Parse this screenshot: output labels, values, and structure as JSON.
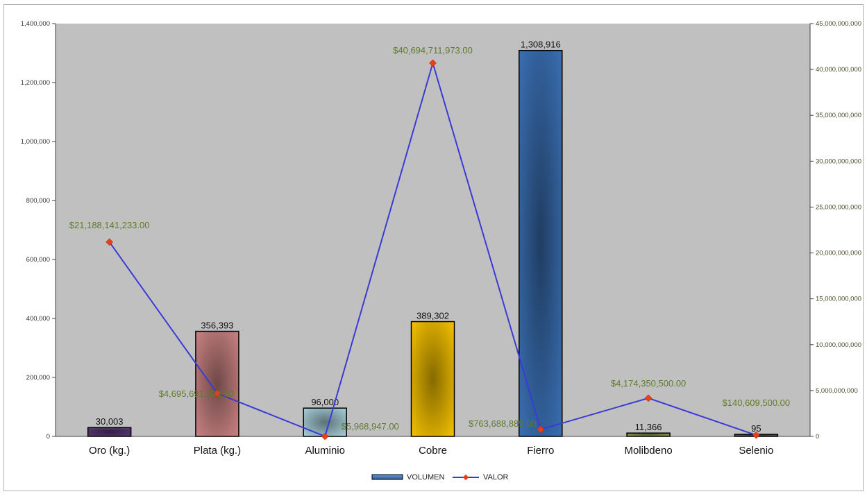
{
  "chart_data": {
    "type": "bar",
    "categories": [
      "Oro (kg.)",
      "Plata (kg.)",
      "Aluminio",
      "Cobre",
      "Fierro",
      "Molibdeno",
      "Selenio"
    ],
    "series": [
      {
        "name": "VOLUMEN",
        "type": "bar",
        "axis": "left",
        "values": [
          30003,
          356393,
          96000,
          389302,
          1308916,
          11366,
          95
        ],
        "labels": [
          "30,003",
          "356,393",
          "96,000",
          "389,302",
          "1,308,916",
          "11,366",
          "95"
        ],
        "colors": [
          "#5a3a78",
          "#c98282",
          "#a8cfd9",
          "#f4c100",
          "#3a6fb3",
          "#8da05a",
          "#606060"
        ]
      },
      {
        "name": "VALOR",
        "type": "line",
        "axis": "right",
        "values": [
          21188141233,
          4695691990,
          5968947,
          40694711973,
          763688885,
          4174350500,
          140609500
        ],
        "labels": [
          "$21,188,141,233.00",
          "$4,695,691,990.00",
          "$5,968,947.00",
          "$40,694,711,973.00",
          "$763,688,885.00",
          "$4,174,350,500.00",
          "$140,609,500.00"
        ],
        "color": "#3a3ad6",
        "marker_color": "#e8401a"
      }
    ],
    "y_left": {
      "ylim": [
        0,
        1400000
      ],
      "ticks": [
        0,
        200000,
        400000,
        600000,
        800000,
        1000000,
        1200000,
        1400000
      ],
      "tick_labels": [
        "0",
        "200,000",
        "400,000",
        "600,000",
        "800,000",
        "1,000,000",
        "1,200,000",
        "1,400,000"
      ]
    },
    "y_right": {
      "ylim": [
        0,
        45000000000
      ],
      "ticks": [
        0,
        5000000000,
        10000000000,
        15000000000,
        20000000000,
        25000000000,
        30000000000,
        35000000000,
        40000000000,
        45000000000
      ],
      "tick_labels": [
        "0",
        "5,000,000,000",
        "10,000,000,000",
        "15,000,000,000",
        "20,000,000,000",
        "25,000,000,000",
        "30,000,000,000",
        "35,000,000,000",
        "40,000,000,000",
        "45,000,000,000"
      ]
    },
    "legend": {
      "position": "bottom",
      "items": [
        {
          "label": "VOLUMEN",
          "kind": "bar",
          "color": "#3a6fb3"
        },
        {
          "label": "VALOR",
          "kind": "line",
          "color": "#3a3ad6",
          "marker_color": "#e8401a"
        }
      ]
    },
    "plot_background": "#c0c0c0",
    "grid": false
  }
}
